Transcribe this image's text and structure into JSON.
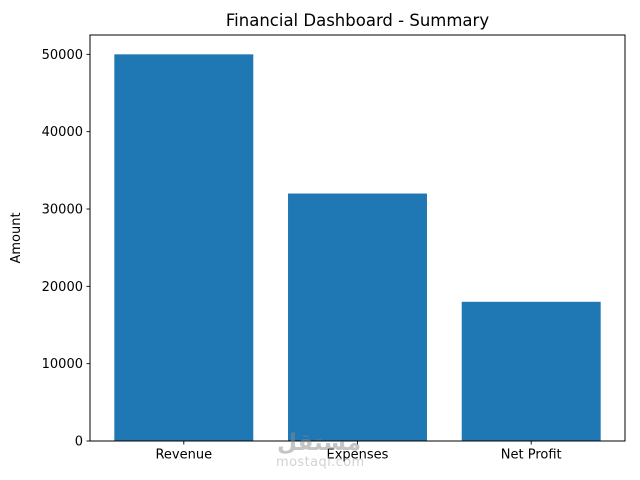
{
  "chart_data": {
    "type": "bar",
    "title": "Financial Dashboard - Summary",
    "categories": [
      "Revenue",
      "Expenses",
      "Net Profit"
    ],
    "values": [
      50000,
      32000,
      18000
    ],
    "xlabel": "",
    "ylabel": "Amount",
    "yticks": [
      0,
      10000,
      20000,
      30000,
      40000,
      50000
    ],
    "ylim": [
      0,
      52500
    ],
    "bar_color": "#1f77b4",
    "bar_width_frac": 0.8,
    "grid": false,
    "legend_position": "none",
    "spine_color": "#000000",
    "text_color": "#000000",
    "background": "#ffffff"
  },
  "watermark": {
    "logo": "مستقل",
    "domain": "mostaql.com"
  }
}
